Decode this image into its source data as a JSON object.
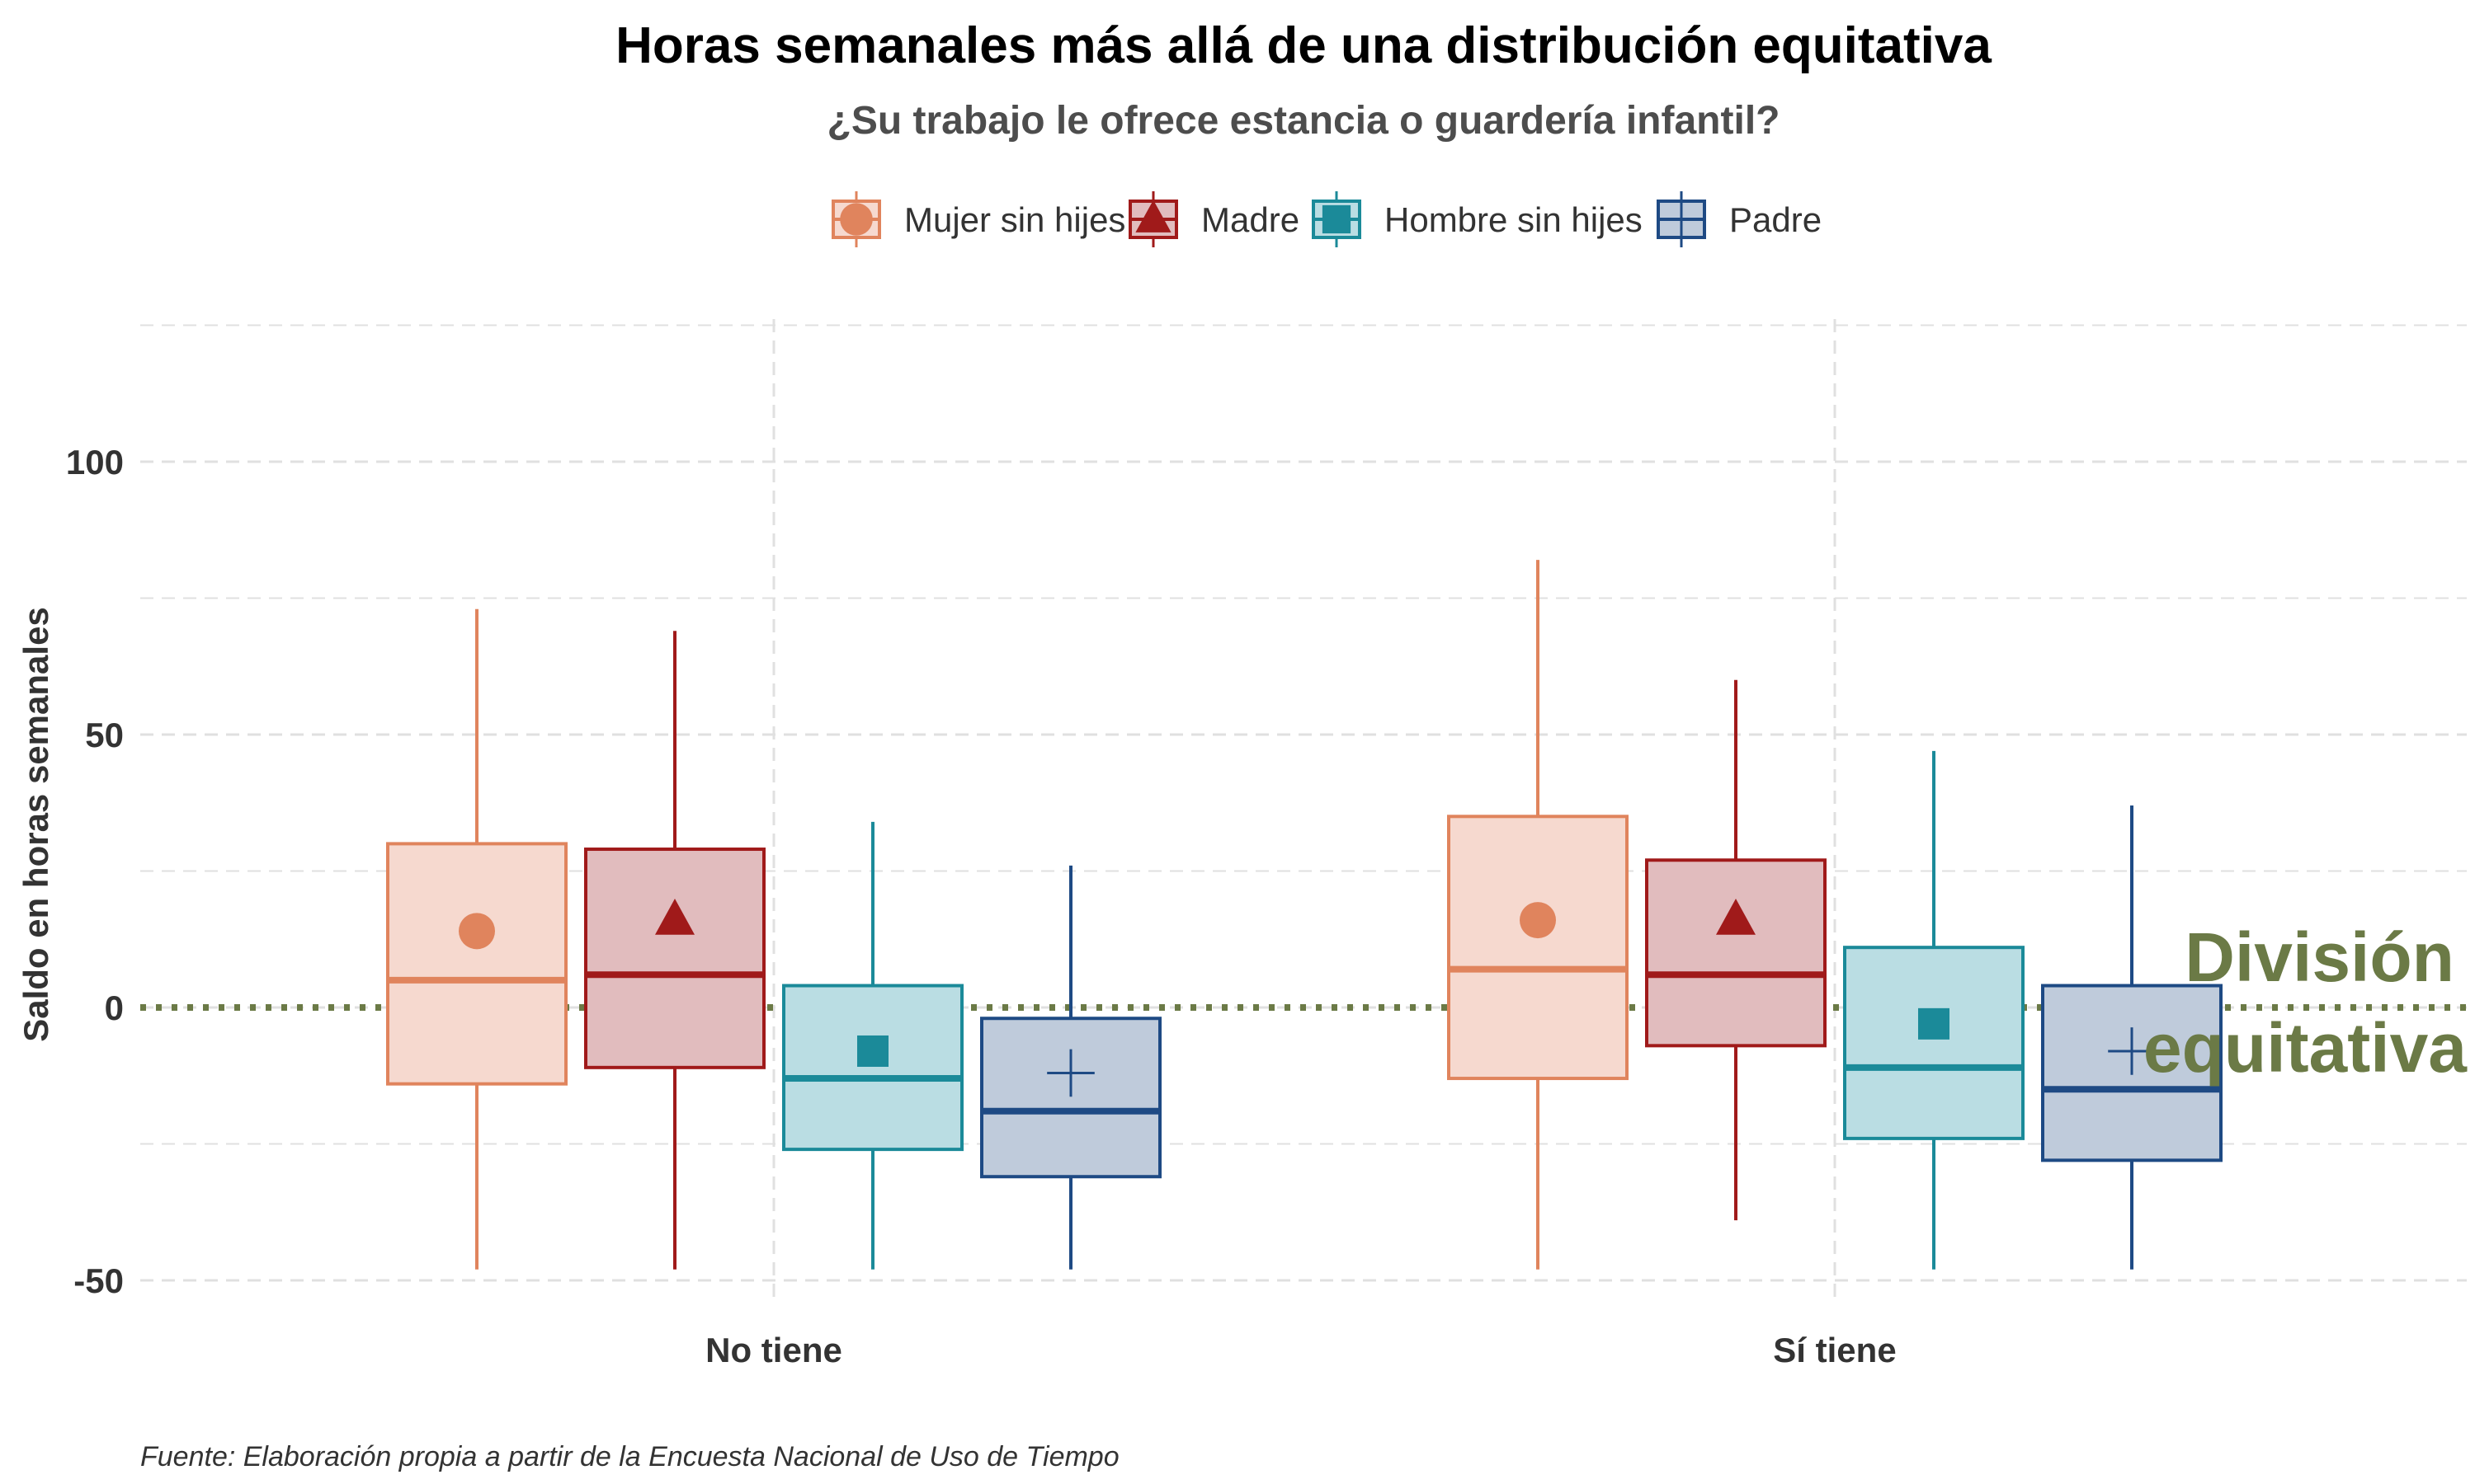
{
  "chart_data": {
    "type": "boxplot",
    "title": "Horas semanales más allá de una distribución equitativa",
    "subtitle": "¿Su trabajo le ofrece estancia o guardería infantil?",
    "xlabel": "",
    "ylabel": "Saldo en horas semanales",
    "caption": "Fuente: Elaboración propia a partir de la Encuesta Nacional de Uso de Tiempo",
    "categories": [
      "No tiene",
      "Sí tiene"
    ],
    "ylim": [
      -50,
      125
    ],
    "yticks": [
      -50,
      0,
      50,
      100
    ],
    "ytick_labels": [
      "-50",
      "0",
      "50",
      "100"
    ],
    "grid": true,
    "legend_position": "top",
    "reference_line": {
      "y": 0,
      "style": "dotted",
      "color": "#6b7a46"
    },
    "annotation": {
      "lines": [
        "División",
        "equitativa"
      ],
      "color": "#6b7a46",
      "y": 0
    },
    "series": [
      {
        "name": "Mujer sin hijes",
        "color": "#e0845d",
        "fill": "#f6d9cf",
        "marker": "circle",
        "boxes": [
          {
            "category": "No tiene",
            "whisker_low": -48,
            "q1": -14,
            "median": 5,
            "q3": 30,
            "whisker_high": 73,
            "mean": 14
          },
          {
            "category": "Sí tiene",
            "whisker_low": -48,
            "q1": -13,
            "median": 7,
            "q3": 35,
            "whisker_high": 82,
            "mean": 16
          }
        ]
      },
      {
        "name": "Madre",
        "color": "#a01a1a",
        "fill": "#e1bcbe",
        "marker": "triangle",
        "boxes": [
          {
            "category": "No tiene",
            "whisker_low": -48,
            "q1": -11,
            "median": 6,
            "q3": 29,
            "whisker_high": 69,
            "mean": 16
          },
          {
            "category": "Sí tiene",
            "whisker_low": -39,
            "q1": -7,
            "median": 6,
            "q3": 27,
            "whisker_high": 60,
            "mean": 16
          }
        ]
      },
      {
        "name": "Hombre sin hijes",
        "color": "#1b8a99",
        "fill": "#badde3",
        "marker": "square",
        "boxes": [
          {
            "category": "No tiene",
            "whisker_low": -48,
            "q1": -26,
            "median": -13,
            "q3": 4,
            "whisker_high": 34,
            "mean": -8
          },
          {
            "category": "Sí tiene",
            "whisker_low": -48,
            "q1": -24,
            "median": -11,
            "q3": 11,
            "whisker_high": 47,
            "mean": -3
          }
        ]
      },
      {
        "name": "Padre",
        "color": "#1e4a84",
        "fill": "#bfcbdb",
        "marker": "cross",
        "boxes": [
          {
            "category": "No tiene",
            "whisker_low": -48,
            "q1": -31,
            "median": -19,
            "q3": -2,
            "whisker_high": 26,
            "mean": -12
          },
          {
            "category": "Sí tiene",
            "whisker_low": -48,
            "q1": -28,
            "median": -15,
            "q3": 4,
            "whisker_high": 37,
            "mean": -8
          }
        ]
      }
    ]
  }
}
